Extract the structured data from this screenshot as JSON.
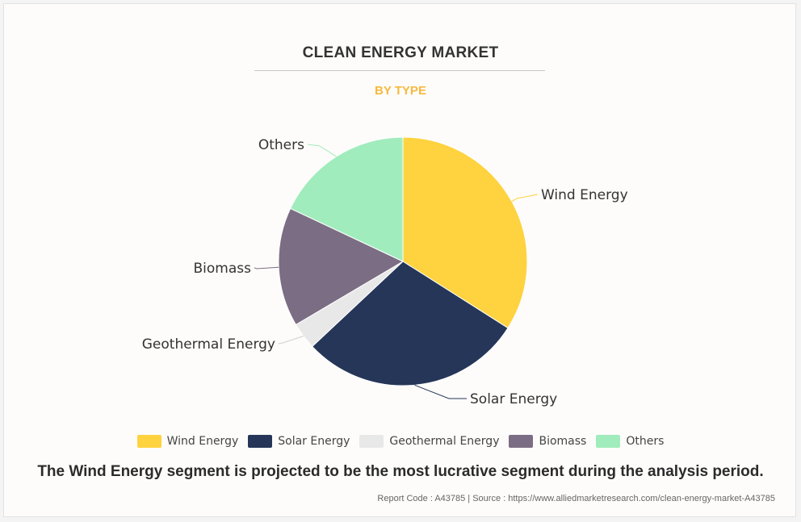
{
  "title": "CLEAN ENERGY MARKET",
  "subtitle": "BY TYPE",
  "chart_data": {
    "type": "pie",
    "title": "CLEAN ENERGY MARKET",
    "subtitle": "BY TYPE",
    "categories": [
      "Wind Energy",
      "Solar Energy",
      "Geothermal Energy",
      "Biomass",
      "Others"
    ],
    "values": [
      34,
      29,
      3.5,
      15.5,
      18
    ],
    "colors": [
      "#ffd23f",
      "#253659",
      "#e8e8e8",
      "#7b6d83",
      "#a0ecbc"
    ],
    "legend_position": "bottom"
  },
  "legend": [
    {
      "label": "Wind Energy",
      "color": "#ffd23f"
    },
    {
      "label": "Solar Energy",
      "color": "#253659"
    },
    {
      "label": "Geothermal Energy",
      "color": "#e8e8e8"
    },
    {
      "label": "Biomass",
      "color": "#7b6d83"
    },
    {
      "label": "Others",
      "color": "#a0ecbc"
    }
  ],
  "caption": "The Wind Energy segment is projected to be the most lucrative segment during the analysis period.",
  "footer": "Report Code : A43785  |  Source : https://www.alliedmarketresearch.com/clean-energy-market-A43785"
}
